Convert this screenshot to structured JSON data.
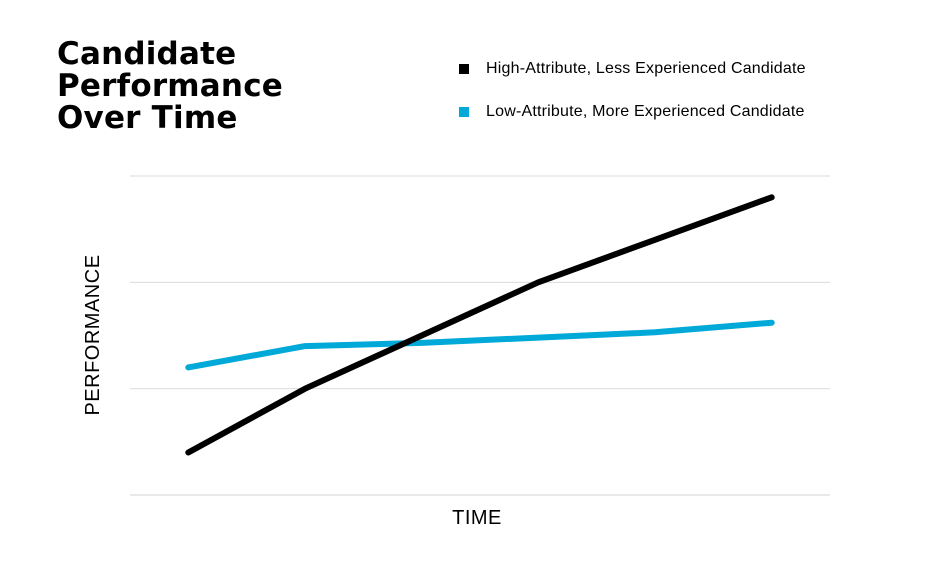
{
  "chart_data": {
    "type": "line",
    "title_lines": [
      "Candidate",
      "Performance",
      "Over Time"
    ],
    "xlabel": "TIME",
    "ylabel": "PERFORMANCE",
    "x": [
      1,
      2,
      3,
      4,
      5,
      6
    ],
    "xlim": [
      0.5,
      6.5
    ],
    "ylim": [
      0,
      3
    ],
    "gridlines": [
      0,
      1,
      2,
      3
    ],
    "series": [
      {
        "name": "High-Attribute, Less Experienced Candidate",
        "color": "#000000",
        "values": [
          0.4,
          1.0,
          1.5,
          2.0,
          2.4,
          2.8
        ]
      },
      {
        "name": "Low-Attribute, More Experienced Candidate",
        "color": "#00A9D8",
        "values": [
          1.2,
          1.4,
          1.43,
          1.48,
          1.53,
          1.62
        ]
      }
    ]
  },
  "colors": {
    "grid": "#DCDCDC",
    "text": "#000000"
  }
}
